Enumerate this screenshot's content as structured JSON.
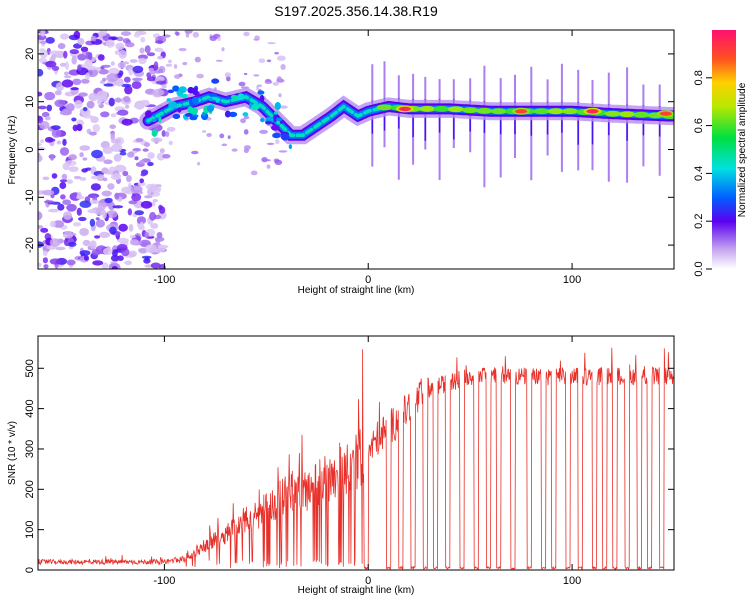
{
  "title": "S197.2025.356.14.38.R19",
  "chart_data": [
    {
      "type": "heatmap",
      "name": "spectrogram",
      "xlabel": "Height of straight line (km)",
      "ylabel": "Frequency (Hz)",
      "xlim": [
        -162,
        150
      ],
      "ylim": [
        -25,
        25
      ],
      "xticks": [
        -100,
        0,
        100
      ],
      "yticks": [
        -20,
        -10,
        0,
        10,
        20
      ],
      "colorbar": {
        "label": "Normalized spectral amplitude",
        "range": [
          0,
          1
        ],
        "ticks": [
          0.0,
          0.2,
          0.4,
          0.6,
          0.8
        ]
      },
      "noise_region_x": [
        -162,
        -100
      ],
      "ridge": {
        "x": [
          -108,
          -95,
          -85,
          -78,
          -70,
          -60,
          -52,
          -45,
          -38,
          -32,
          -25,
          -18,
          -12,
          -5,
          0,
          10,
          20,
          40,
          60,
          80,
          100,
          120,
          148
        ],
        "frequency": [
          6,
          9,
          10,
          11,
          10,
          11,
          9,
          6,
          3,
          3,
          5,
          7,
          9,
          7,
          8,
          9,
          8.5,
          8.5,
          8,
          8,
          8,
          7.5,
          7
        ]
      },
      "peaks": [
        {
          "x": 18,
          "frequency": 8.5,
          "amplitude": 0.95
        },
        {
          "x": 75,
          "frequency": 8,
          "amplitude": 0.9
        },
        {
          "x": 110,
          "frequency": 8,
          "amplitude": 0.95
        },
        {
          "x": 146,
          "frequency": 7.5,
          "amplitude": 0.9
        }
      ],
      "spike_columns_x": [
        2,
        8,
        15,
        22,
        28,
        35,
        42,
        50,
        57,
        65,
        72,
        80,
        88,
        95,
        103,
        110,
        118,
        127,
        135,
        143
      ]
    },
    {
      "type": "line",
      "name": "snr",
      "xlabel": "Height of straight line (km)",
      "ylabel": "SNR (10 * v/v)",
      "xlim": [
        -162,
        150
      ],
      "ylim": [
        0,
        580
      ],
      "xticks": [
        -100,
        0,
        100
      ],
      "yticks": [
        0,
        100,
        200,
        300,
        400,
        500
      ],
      "color": "#e8302a",
      "trend": {
        "x": [
          -162,
          -100,
          -90,
          -80,
          -70,
          -60,
          -50,
          -40,
          -30,
          -20,
          -10,
          0,
          5,
          10,
          20,
          30,
          50,
          100,
          150
        ],
        "snr": [
          20,
          20,
          30,
          60,
          90,
          120,
          150,
          190,
          200,
          230,
          260,
          290,
          330,
          350,
          400,
          450,
          480,
          480,
          480
        ]
      },
      "dropout_intervals_x": [
        [
          -2,
          0
        ],
        [
          9,
          11
        ],
        [
          15,
          17
        ],
        [
          21,
          23
        ],
        [
          27,
          29
        ],
        [
          32,
          34
        ],
        [
          38,
          40
        ],
        [
          45,
          47
        ],
        [
          52,
          54
        ],
        [
          58,
          60
        ],
        [
          63,
          65
        ],
        [
          70,
          72
        ],
        [
          78,
          80
        ],
        [
          85,
          87
        ],
        [
          90,
          92
        ],
        [
          97,
          99
        ],
        [
          103,
          105
        ],
        [
          110,
          112
        ],
        [
          115,
          117
        ],
        [
          120,
          122
        ],
        [
          126,
          128
        ],
        [
          132,
          134
        ],
        [
          137,
          139
        ],
        [
          143,
          145
        ]
      ]
    }
  ]
}
